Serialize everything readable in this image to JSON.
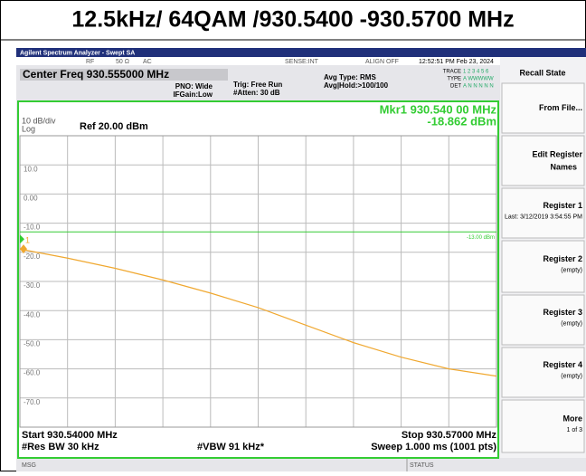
{
  "title": "12.5kHz/ 64QAM /930.5400 -930.5700 MHz",
  "analyzer": {
    "app_title": "Agilent Spectrum Analyzer - Swept SA",
    "status": [
      "RF",
      "50 Ω",
      "AC",
      "SENSE:INT",
      "ALIGN OFF",
      "12:52:51 PM Feb 23, 2024"
    ],
    "trace_info": [
      "TRACE",
      "1 2 3 4 5 6",
      "TYPE",
      "A WWWWW",
      "DET",
      "A N N N N N"
    ],
    "center_freq": "Center Freq 930.555000 MHz",
    "pno": "PNO: Wide",
    "ifgain": "IFGain:Low",
    "trig": "Trig: Free Run",
    "atten": "#Atten: 30 dB",
    "avg_type": "Avg Type: RMS",
    "avg_hold": "Avg|Hold:>100/100"
  },
  "chart_data": {
    "type": "line",
    "scale": "10 dB/div",
    "scale_type": "Log",
    "ref_level": "Ref 20.00 dBm",
    "marker_readout": "Mkr1 930.540 00 MHz",
    "marker_value": "-18.862 dBm",
    "marker": {
      "label": "1",
      "x": 930.54,
      "value": -18.862
    },
    "display_line": {
      "value": -13,
      "label": "-13.00 dBm"
    },
    "start": "Start 930.54000 MHz",
    "stop": "Stop 930.57000 MHz",
    "res_bw": "#Res BW 30 kHz",
    "vbw": "#VBW 91 kHz*",
    "sweep": "Sweep  1.000 ms (1001 pts)",
    "x": [
      930.54,
      930.543,
      930.546,
      930.549,
      930.552,
      930.555,
      930.558,
      930.561,
      930.564,
      930.567,
      930.57
    ],
    "series": [
      {
        "name": "Trace 1",
        "color": "#f0a830",
        "values": [
          -18.9,
          -22,
          -25.5,
          -29.5,
          -34,
          -39,
          -45,
          -51,
          -56,
          -60,
          -62.5
        ]
      }
    ],
    "xlim": [
      930.54,
      930.57
    ],
    "xticks": [
      930.54,
      930.543,
      930.546,
      930.549,
      930.552,
      930.555,
      930.558,
      930.561,
      930.564,
      930.567,
      930.57
    ],
    "ylim": [
      -80,
      20
    ],
    "yticks": [
      {
        "value": 10,
        "label": "10.0"
      },
      {
        "value": 0,
        "label": "0.00"
      },
      {
        "value": -10,
        "label": "-10.0"
      },
      {
        "value": -20,
        "label": "-20.0"
      },
      {
        "value": -30,
        "label": "-30.0"
      },
      {
        "value": -40,
        "label": "-40.0"
      },
      {
        "value": -50,
        "label": "-50.0"
      },
      {
        "value": -60,
        "label": "-60.0"
      },
      {
        "value": -70,
        "label": "-70.0"
      }
    ],
    "grid": true
  },
  "softkeys": [
    {
      "label": "Recall State"
    },
    {
      "label": "From File..."
    },
    {
      "label": "Edit Register Names"
    },
    {
      "label": "Register 1",
      "sub": "Last: 3/12/2019 3:54:55 PM"
    },
    {
      "label": "Register 2",
      "sub": "(empty)"
    },
    {
      "label": "Register 3",
      "sub": "(empty)"
    },
    {
      "label": "Register 4",
      "sub": "(empty)"
    },
    {
      "label": "More",
      "sub": "1 of 3"
    }
  ],
  "footer": {
    "msg": "MSG",
    "status": "STATUS"
  }
}
